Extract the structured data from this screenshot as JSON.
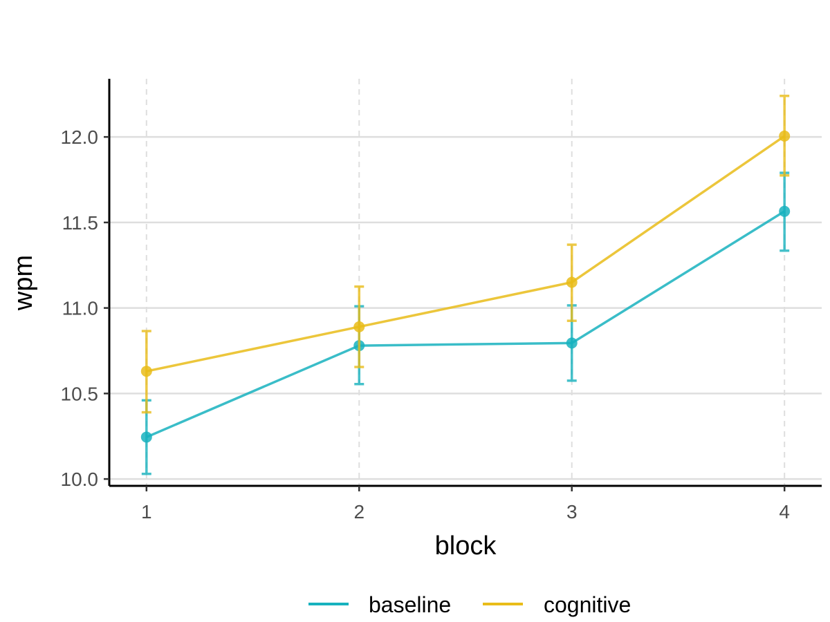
{
  "chart_data": {
    "type": "line",
    "title": "",
    "xlabel": "block",
    "ylabel": "wpm",
    "categories": [
      "1",
      "2",
      "3",
      "4"
    ],
    "x": [
      1,
      2,
      3,
      4
    ],
    "xlim": [
      0.825,
      4.175
    ],
    "ylim": [
      9.96,
      12.34
    ],
    "yticks": [
      "10.0",
      "10.5",
      "11.0",
      "11.5",
      "12.0"
    ],
    "ytick_values": [
      10.0,
      10.5,
      11.0,
      11.5,
      12.0
    ],
    "grid": {
      "horizontal": "solid",
      "vertical": "dashed"
    },
    "legend_position": "bottom",
    "series": [
      {
        "name": "baseline",
        "color": "#17b2be",
        "values": [
          10.245,
          10.78,
          10.795,
          11.565
        ],
        "error_low": [
          10.03,
          10.555,
          10.575,
          11.335
        ],
        "error_high": [
          10.46,
          11.01,
          11.015,
          11.79
        ]
      },
      {
        "name": "cognitive",
        "color": "#e9bc19",
        "values": [
          10.63,
          10.89,
          11.15,
          12.005
        ],
        "error_low": [
          10.39,
          10.655,
          10.925,
          11.775
        ],
        "error_high": [
          10.865,
          11.125,
          11.37,
          12.24
        ]
      }
    ]
  }
}
